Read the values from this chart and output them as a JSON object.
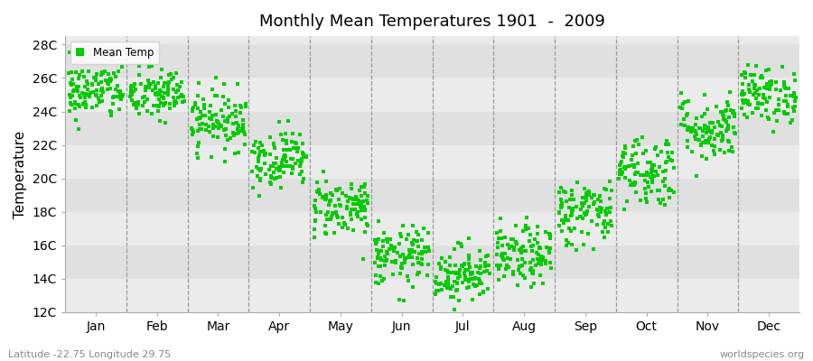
{
  "title": "Monthly Mean Temperatures 1901  -  2009",
  "ylabel": "Temperature",
  "xlabel_months": [
    "Jan",
    "Feb",
    "Mar",
    "Apr",
    "May",
    "Jun",
    "Jul",
    "Aug",
    "Sep",
    "Oct",
    "Nov",
    "Dec"
  ],
  "subtitle": "Latitude -22.75 Longitude 29.75",
  "watermark": "worldspecies.org",
  "ylim": [
    12,
    28.5
  ],
  "ytick_labels": [
    "12C",
    "14C",
    "16C",
    "18C",
    "20C",
    "22C",
    "24C",
    "26C",
    "28C"
  ],
  "ytick_values": [
    12,
    14,
    16,
    18,
    20,
    22,
    24,
    26,
    28
  ],
  "dot_color": "#00cc00",
  "dot_size": 5,
  "background_color": "#ebebeb",
  "legend_label": "Mean Temp",
  "n_years": 109,
  "monthly_means": [
    25.2,
    25.0,
    23.5,
    21.2,
    18.3,
    15.3,
    14.3,
    15.3,
    18.0,
    20.5,
    23.0,
    25.0
  ],
  "monthly_stds": [
    0.85,
    0.8,
    0.9,
    0.85,
    0.9,
    0.9,
    0.85,
    0.9,
    1.0,
    1.1,
    1.0,
    0.85
  ]
}
